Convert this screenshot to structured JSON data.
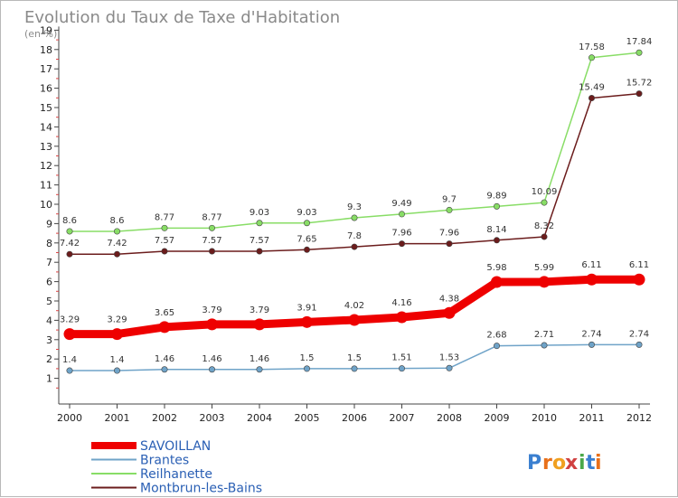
{
  "chart_data": {
    "type": "line",
    "title": "Evolution du Taux de Taxe d'Habitation",
    "subtitle": "(en %)",
    "x": [
      "2000",
      "2001",
      "2002",
      "2003",
      "2004",
      "2005",
      "2006",
      "2007",
      "2008",
      "2009",
      "2010",
      "2011",
      "2012"
    ],
    "ylim": [
      0,
      19
    ],
    "yticks": [
      "1",
      "2",
      "3",
      "4",
      "5",
      "6",
      "7",
      "8",
      "9",
      "10",
      "11",
      "12",
      "13",
      "14",
      "15",
      "16",
      "17",
      "18",
      "19"
    ],
    "grid": false,
    "legend_position": "bottom-left",
    "series": [
      {
        "name": "SAVOILLAN",
        "color": "#ee0000",
        "values": [
          3.29,
          3.29,
          3.65,
          3.79,
          3.79,
          3.91,
          4.02,
          4.16,
          4.38,
          5.98,
          5.99,
          6.11,
          6.11
        ],
        "labels": [
          "3.29",
          "3.29",
          "3.65",
          "3.79",
          "3.79",
          "3.91",
          "4.02",
          "4.16",
          "4.38",
          "5.98",
          "5.99",
          "6.11",
          "6.11"
        ]
      },
      {
        "name": "Brantes",
        "color": "#6fa3c8",
        "values": [
          1.4,
          1.4,
          1.46,
          1.46,
          1.46,
          1.5,
          1.5,
          1.51,
          1.53,
          2.68,
          2.71,
          2.74,
          2.74
        ],
        "labels": [
          "1.4",
          "1.4",
          "1.46",
          "1.46",
          "1.46",
          "1.5",
          "1.5",
          "1.51",
          "1.53",
          "2.68",
          "2.71",
          "2.74",
          "2.74"
        ]
      },
      {
        "name": "Reilhanette",
        "color": "#88dd66",
        "values": [
          8.6,
          8.6,
          8.77,
          8.77,
          9.03,
          9.03,
          9.3,
          9.49,
          9.7,
          9.89,
          10.09,
          17.58,
          17.84
        ],
        "labels": [
          "8.6",
          "8.6",
          "8.77",
          "8.77",
          "9.03",
          "9.03",
          "9.3",
          "9.49",
          "9.7",
          "9.89",
          "10.09",
          "17.58",
          "17.84"
        ]
      },
      {
        "name": "Montbrun-les-Bains",
        "color": "#6b1c1c",
        "values": [
          7.42,
          7.42,
          7.57,
          7.57,
          7.57,
          7.65,
          7.8,
          7.96,
          7.96,
          8.14,
          8.32,
          15.49,
          15.72
        ],
        "labels": [
          "7.42",
          "7.42",
          "7.57",
          "7.57",
          "7.57",
          "7.65",
          "7.8",
          "7.96",
          "7.96",
          "8.14",
          "8.32",
          "15.49",
          "15.72"
        ]
      }
    ]
  },
  "logo": {
    "text": "Proxiti",
    "letters": [
      "P",
      "r",
      "o",
      "x",
      "i",
      "t",
      "i"
    ]
  }
}
